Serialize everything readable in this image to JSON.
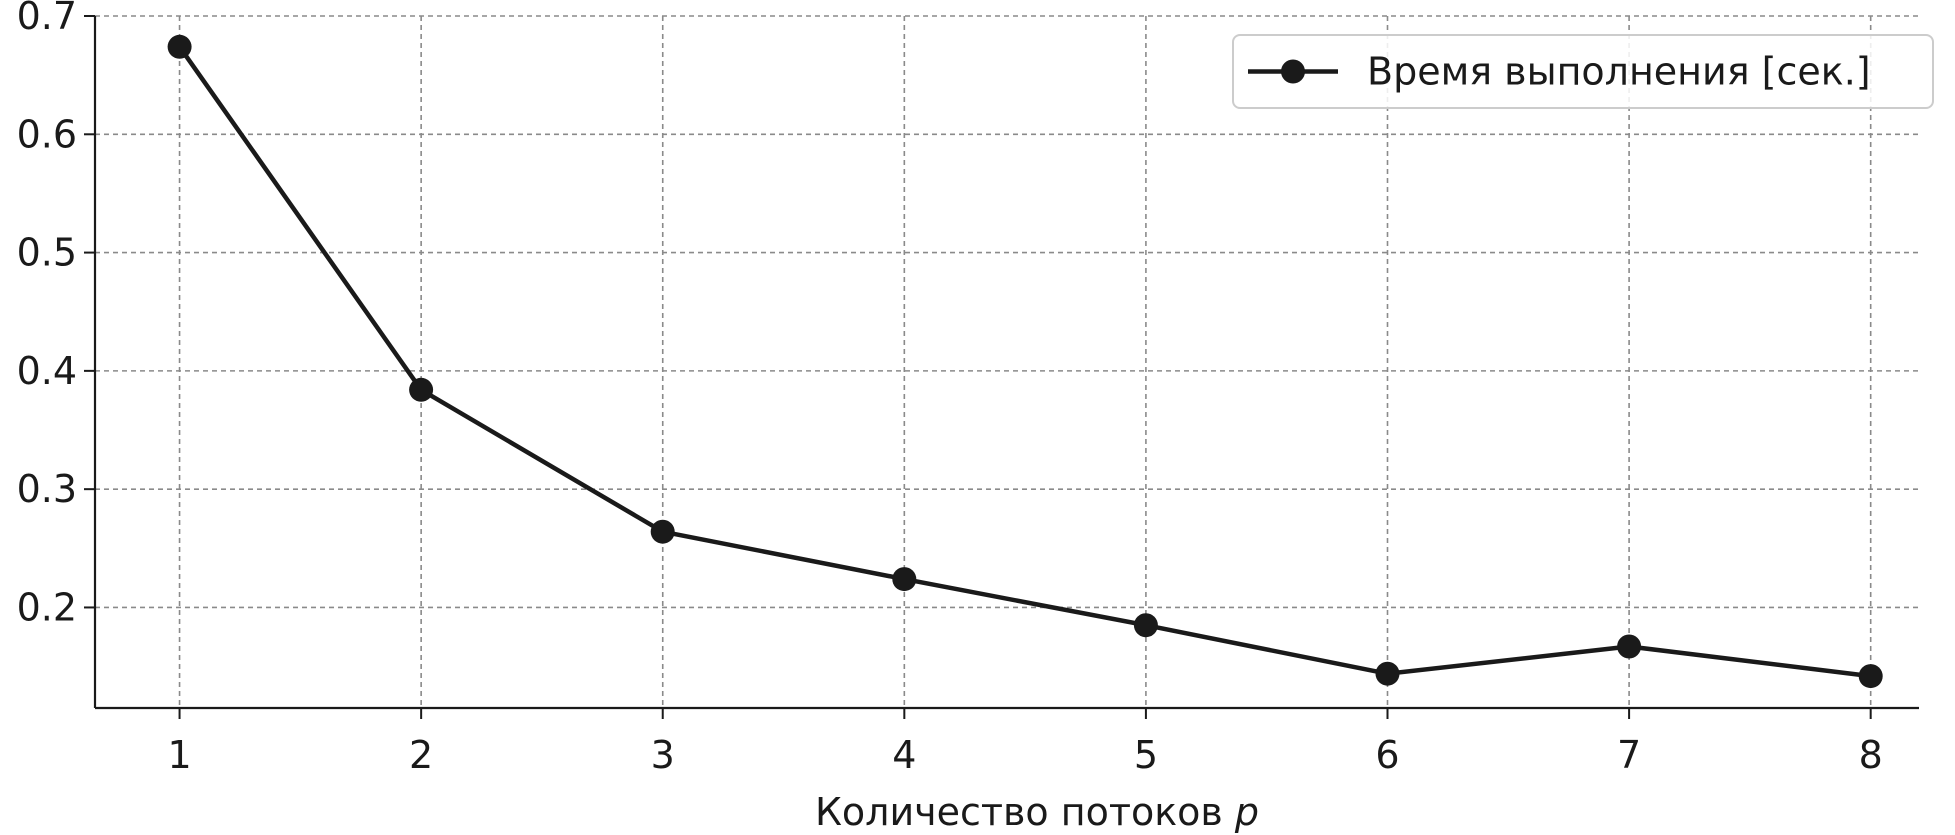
{
  "chart_data": {
    "type": "line",
    "x": [
      1,
      2,
      3,
      4,
      5,
      6,
      7,
      8
    ],
    "series": [
      {
        "name": "Время выполнения [сек.]",
        "values": [
          0.674,
          0.384,
          0.264,
          0.224,
          0.185,
          0.144,
          0.167,
          0.142
        ],
        "color": "#1a1a1a",
        "marker": "circle"
      }
    ],
    "xlabel_main": "Количество потоков ",
    "xlabel_var": "p",
    "ylabel": "",
    "xticks": [
      "1",
      "2",
      "3",
      "4",
      "5",
      "6",
      "7",
      "8"
    ],
    "yticks": [
      "0.2",
      "0.3",
      "0.4",
      "0.5",
      "0.6",
      "0.7"
    ],
    "xlim": [
      0.65,
      8.2
    ],
    "ylim": [
      0.115,
      0.7
    ],
    "grid": true,
    "grid_style": "dashed",
    "legend_position": "top-right",
    "colors": {
      "line": "#1a1a1a",
      "grid": "#8a8a8a",
      "axis": "#1a1a1a",
      "legend_border": "#cccccc"
    }
  }
}
